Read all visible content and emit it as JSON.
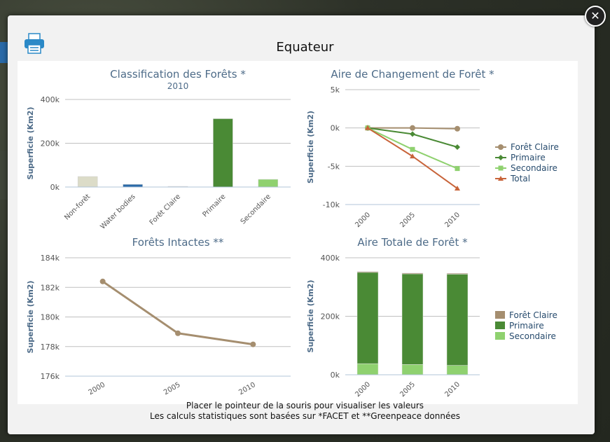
{
  "modal": {
    "title": "Equateur",
    "close_glyph": "✕",
    "print_icon": "printer-icon",
    "footer_line1": "Placer le pointeur de la souris pour visualiser les valeurs",
    "footer_line2": "Les calculs statistiques sont basées sur *FACET et **Greenpeace données"
  },
  "colors": {
    "foret_claire": "#a58e6f",
    "primaire": "#4a8a35",
    "secondaire": "#8fd16f",
    "total": "#c8643a",
    "nonforet": "#dcdcc8",
    "water": "#2a6aa8",
    "title": "#4d6b88",
    "accent": "#2b89c7"
  },
  "chart_data": [
    {
      "type": "bar",
      "title": "Classification des Forêts *",
      "subtitle": "2010",
      "ylabel": "Superficie (Km2)",
      "categories": [
        "Non-forêt",
        "Water bodies",
        "Forêt Claire",
        "Primaire",
        "Secondaire"
      ],
      "values": [
        48000,
        12000,
        3000,
        312000,
        35000
      ],
      "ylim": [
        0,
        400000
      ],
      "yticks": [
        "0k",
        "200k",
        "400k"
      ],
      "grid": true
    },
    {
      "type": "line",
      "title": "Aire de Changement de Forêt *",
      "ylabel": "Superficie (Km2)",
      "categories": [
        "2000",
        "2005",
        "2010"
      ],
      "ylim": [
        -10000,
        5000
      ],
      "yticks": [
        "5k",
        "0k",
        "-5k",
        "-10k"
      ],
      "series": [
        {
          "name": "Forêt Claire",
          "values": [
            0,
            0,
            -100
          ]
        },
        {
          "name": "Primaire",
          "values": [
            0,
            -800,
            -2500
          ]
        },
        {
          "name": "Secondaire",
          "values": [
            0,
            -2800,
            -5300
          ]
        },
        {
          "name": "Total",
          "values": [
            0,
            -3700,
            -7900
          ]
        }
      ],
      "legend": "right",
      "grid": true
    },
    {
      "type": "line",
      "title": "Forêts Intactes **",
      "ylabel": "Superficie (Km2)",
      "categories": [
        "2000",
        "2005",
        "2010"
      ],
      "ylim": [
        176000,
        184000
      ],
      "yticks": [
        "184k",
        "182k",
        "180k",
        "178k",
        "176k"
      ],
      "series": [
        {
          "values": [
            182400,
            178900,
            178150
          ]
        }
      ],
      "grid": true
    },
    {
      "type": "bar",
      "title": "Aire Totale de Forêt *",
      "ylabel": "Superficie (Km2)",
      "categories": [
        "2000",
        "2005",
        "2010"
      ],
      "ylim": [
        0,
        400000
      ],
      "yticks": [
        "400k",
        "200k",
        "0k"
      ],
      "stacked": true,
      "series": [
        {
          "name": "Secondaire",
          "values": [
            38000,
            35000,
            32000
          ]
        },
        {
          "name": "Primaire",
          "values": [
            312000,
            310000,
            312000
          ]
        },
        {
          "name": "Forêt Claire",
          "values": [
            3000,
            3000,
            3000
          ]
        }
      ],
      "legend": "right",
      "grid": true
    }
  ]
}
